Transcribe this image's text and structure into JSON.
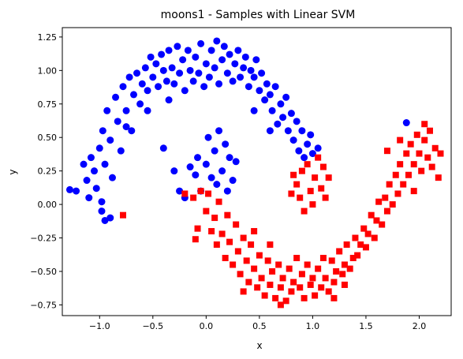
{
  "chart_data": {
    "type": "scatter",
    "title": "moons1 - Samples with Linear SVM",
    "xlabel": "x",
    "ylabel": "y",
    "xlim": [
      -1.35,
      2.3
    ],
    "ylim": [
      -0.83,
      1.32
    ],
    "xticks": [
      -1.0,
      -0.5,
      0.0,
      0.5,
      1.0,
      1.5,
      2.0
    ],
    "xtick_labels": [
      "−1.0",
      "−0.5",
      "0.0",
      "0.5",
      "1.0",
      "1.5",
      "2.0"
    ],
    "yticks": [
      -0.75,
      -0.5,
      -0.25,
      0.0,
      0.25,
      0.5,
      0.75,
      1.0,
      1.25
    ],
    "ytick_labels": [
      "−0.75",
      "−0.50",
      "−0.25",
      "0.00",
      "0.25",
      "0.50",
      "0.75",
      "1.00",
      "1.25"
    ],
    "grid": false,
    "series": [
      {
        "marker": "circle",
        "color": "#0000ff",
        "points": [
          [
            -1.28,
            0.11
          ],
          [
            -1.22,
            0.1
          ],
          [
            -1.15,
            0.3
          ],
          [
            -1.12,
            0.18
          ],
          [
            -1.1,
            0.05
          ],
          [
            -1.08,
            0.35
          ],
          [
            -1.05,
            0.25
          ],
          [
            -1.03,
            0.12
          ],
          [
            -1.0,
            0.42
          ],
          [
            -0.98,
            0.02
          ],
          [
            -0.97,
            0.55
          ],
          [
            -0.95,
            0.3
          ],
          [
            -0.93,
            0.7
          ],
          [
            -0.9,
            0.48
          ],
          [
            -0.88,
            0.2
          ],
          [
            -0.85,
            0.8
          ],
          [
            -0.83,
            0.62
          ],
          [
            -0.8,
            0.4
          ],
          [
            -0.78,
            0.88
          ],
          [
            -0.75,
            0.7
          ],
          [
            -0.72,
            0.95
          ],
          [
            -0.7,
            0.55
          ],
          [
            -0.68,
            0.82
          ],
          [
            -0.65,
            0.98
          ],
          [
            -0.62,
            0.75
          ],
          [
            -0.6,
            0.9
          ],
          [
            -0.57,
            1.02
          ],
          [
            -0.55,
            0.85
          ],
          [
            -0.52,
            1.1
          ],
          [
            -0.5,
            0.95
          ],
          [
            -0.47,
            1.05
          ],
          [
            -0.45,
            0.88
          ],
          [
            -0.42,
            1.12
          ],
          [
            -0.4,
            1.0
          ],
          [
            -0.37,
            0.92
          ],
          [
            -0.35,
            1.15
          ],
          [
            -0.32,
            1.02
          ],
          [
            -0.3,
            0.9
          ],
          [
            -0.27,
            1.18
          ],
          [
            -0.25,
            0.98
          ],
          [
            -0.22,
            1.08
          ],
          [
            -0.2,
            0.85
          ],
          [
            -0.17,
            1.15
          ],
          [
            -0.15,
            1.0
          ],
          [
            -0.12,
            0.92
          ],
          [
            -0.1,
            1.1
          ],
          [
            -0.07,
            0.98
          ],
          [
            -0.05,
            1.2
          ],
          [
            -0.02,
            0.88
          ],
          [
            0.0,
            1.05
          ],
          [
            0.03,
            0.95
          ],
          [
            0.05,
            1.15
          ],
          [
            0.08,
            1.02
          ],
          [
            0.1,
            1.22
          ],
          [
            0.12,
            0.9
          ],
          [
            0.15,
            1.08
          ],
          [
            0.17,
            1.18
          ],
          [
            0.2,
            0.98
          ],
          [
            0.22,
            1.12
          ],
          [
            0.25,
            0.92
          ],
          [
            0.27,
            1.05
          ],
          [
            0.3,
            1.15
          ],
          [
            0.32,
            0.95
          ],
          [
            0.35,
            1.02
          ],
          [
            0.37,
            1.1
          ],
          [
            0.4,
            0.88
          ],
          [
            0.42,
            1.0
          ],
          [
            0.45,
            0.95
          ],
          [
            0.47,
            1.08
          ],
          [
            0.5,
            0.85
          ],
          [
            0.52,
            0.98
          ],
          [
            0.55,
            0.78
          ],
          [
            0.57,
            0.9
          ],
          [
            0.6,
            0.82
          ],
          [
            0.62,
            0.7
          ],
          [
            0.65,
            0.88
          ],
          [
            0.67,
            0.6
          ],
          [
            0.7,
            0.75
          ],
          [
            0.72,
            0.65
          ],
          [
            0.75,
            0.8
          ],
          [
            0.77,
            0.55
          ],
          [
            0.8,
            0.68
          ],
          [
            0.82,
            0.48
          ],
          [
            0.85,
            0.62
          ],
          [
            0.87,
            0.4
          ],
          [
            0.9,
            0.55
          ],
          [
            0.92,
            0.35
          ],
          [
            0.95,
            0.45
          ],
          [
            0.98,
            0.52
          ],
          [
            1.0,
            0.38
          ],
          [
            1.05,
            0.42
          ],
          [
            1.88,
            0.61
          ],
          [
            0.0,
            0.3
          ],
          [
            0.02,
            0.5
          ],
          [
            0.05,
            0.2
          ],
          [
            0.08,
            0.4
          ],
          [
            0.1,
            0.15
          ],
          [
            0.12,
            0.55
          ],
          [
            0.15,
            0.25
          ],
          [
            0.18,
            0.45
          ],
          [
            0.2,
            0.1
          ],
          [
            0.22,
            0.35
          ],
          [
            0.25,
            0.18
          ],
          [
            0.28,
            0.32
          ],
          [
            -0.05,
            0.1
          ],
          [
            -0.08,
            0.35
          ],
          [
            -0.1,
            0.22
          ],
          [
            -0.15,
            0.28
          ],
          [
            -0.2,
            0.05
          ],
          [
            -0.25,
            0.1
          ],
          [
            -0.3,
            0.25
          ],
          [
            -0.4,
            0.42
          ],
          [
            -0.95,
            -0.12
          ],
          [
            -0.9,
            -0.1
          ],
          [
            -0.98,
            -0.05
          ],
          [
            -0.35,
            0.78
          ],
          [
            -0.55,
            0.7
          ],
          [
            -0.75,
            0.58
          ],
          [
            0.45,
            0.7
          ],
          [
            0.6,
            0.55
          ]
        ]
      },
      {
        "marker": "square",
        "color": "#ff0000",
        "points": [
          [
            -0.78,
            -0.08
          ],
          [
            -0.08,
            -0.18
          ],
          [
            -0.1,
            -0.26
          ],
          [
            -0.12,
            0.05
          ],
          [
            -0.05,
            0.1
          ],
          [
            0.0,
            -0.05
          ],
          [
            0.02,
            0.08
          ],
          [
            0.05,
            -0.2
          ],
          [
            0.08,
            -0.1
          ],
          [
            0.1,
            -0.3
          ],
          [
            0.12,
            0.02
          ],
          [
            0.15,
            -0.22
          ],
          [
            0.18,
            -0.4
          ],
          [
            0.2,
            -0.08
          ],
          [
            0.22,
            -0.28
          ],
          [
            0.25,
            -0.45
          ],
          [
            0.28,
            -0.15
          ],
          [
            0.3,
            -0.35
          ],
          [
            0.32,
            -0.52
          ],
          [
            0.35,
            -0.25
          ],
          [
            0.38,
            -0.42
          ],
          [
            0.4,
            -0.58
          ],
          [
            0.42,
            -0.3
          ],
          [
            0.45,
            -0.48
          ],
          [
            0.48,
            -0.62
          ],
          [
            0.5,
            -0.38
          ],
          [
            0.52,
            -0.55
          ],
          [
            0.55,
            -0.68
          ],
          [
            0.58,
            -0.42
          ],
          [
            0.6,
            -0.6
          ],
          [
            0.62,
            -0.5
          ],
          [
            0.65,
            -0.7
          ],
          [
            0.68,
            -0.45
          ],
          [
            0.7,
            -0.62
          ],
          [
            0.72,
            -0.55
          ],
          [
            0.75,
            -0.72
          ],
          [
            0.78,
            -0.48
          ],
          [
            0.8,
            -0.65
          ],
          [
            0.82,
            -0.58
          ],
          [
            0.85,
            -0.4
          ],
          [
            0.88,
            -0.62
          ],
          [
            0.9,
            -0.52
          ],
          [
            0.92,
            -0.7
          ],
          [
            0.95,
            -0.45
          ],
          [
            0.98,
            -0.6
          ],
          [
            1.0,
            -0.55
          ],
          [
            1.02,
            -0.68
          ],
          [
            1.05,
            -0.48
          ],
          [
            1.08,
            -0.62
          ],
          [
            1.1,
            -0.4
          ],
          [
            1.12,
            -0.55
          ],
          [
            1.15,
            -0.65
          ],
          [
            1.18,
            -0.42
          ],
          [
            1.2,
            -0.58
          ],
          [
            1.22,
            -0.5
          ],
          [
            1.25,
            -0.35
          ],
          [
            1.28,
            -0.52
          ],
          [
            1.3,
            -0.45
          ],
          [
            1.32,
            -0.3
          ],
          [
            1.35,
            -0.48
          ],
          [
            1.38,
            -0.4
          ],
          [
            1.4,
            -0.25
          ],
          [
            1.42,
            -0.38
          ],
          [
            1.45,
            -0.3
          ],
          [
            1.48,
            -0.18
          ],
          [
            1.5,
            -0.32
          ],
          [
            1.52,
            -0.22
          ],
          [
            1.55,
            -0.08
          ],
          [
            1.58,
            -0.25
          ],
          [
            1.6,
            -0.12
          ],
          [
            1.62,
            0.02
          ],
          [
            1.65,
            -0.15
          ],
          [
            1.68,
            0.05
          ],
          [
            1.7,
            -0.05
          ],
          [
            1.72,
            0.15
          ],
          [
            1.75,
            0.0
          ],
          [
            1.78,
            0.22
          ],
          [
            1.8,
            0.08
          ],
          [
            1.82,
            0.3
          ],
          [
            1.85,
            0.15
          ],
          [
            1.88,
            0.38
          ],
          [
            1.9,
            0.22
          ],
          [
            1.92,
            0.45
          ],
          [
            1.95,
            0.3
          ],
          [
            1.98,
            0.52
          ],
          [
            2.0,
            0.38
          ],
          [
            2.02,
            0.25
          ],
          [
            2.05,
            0.48
          ],
          [
            2.08,
            0.35
          ],
          [
            2.1,
            0.55
          ],
          [
            2.12,
            0.28
          ],
          [
            2.15,
            0.42
          ],
          [
            2.18,
            0.2
          ],
          [
            2.2,
            0.38
          ],
          [
            1.7,
            0.4
          ],
          [
            1.82,
            0.48
          ],
          [
            1.95,
            0.1
          ],
          [
            2.05,
            0.6
          ],
          [
            0.85,
            0.15
          ],
          [
            0.88,
            0.05
          ],
          [
            0.9,
            0.25
          ],
          [
            0.92,
            -0.05
          ],
          [
            0.95,
            0.3
          ],
          [
            0.98,
            0.1
          ],
          [
            1.0,
            0.0
          ],
          [
            1.02,
            0.2
          ],
          [
            1.05,
            0.35
          ],
          [
            1.08,
            0.12
          ],
          [
            1.1,
            0.28
          ],
          [
            1.12,
            0.05
          ],
          [
            0.82,
            0.22
          ],
          [
            0.8,
            0.08
          ],
          [
            1.15,
            0.2
          ],
          [
            -0.2,
            0.08
          ],
          [
            0.35,
            -0.65
          ],
          [
            0.7,
            -0.75
          ],
          [
            1.2,
            -0.7
          ],
          [
            0.45,
            -0.2
          ],
          [
            0.6,
            -0.3
          ],
          [
            1.3,
            -0.6
          ]
        ]
      }
    ]
  }
}
